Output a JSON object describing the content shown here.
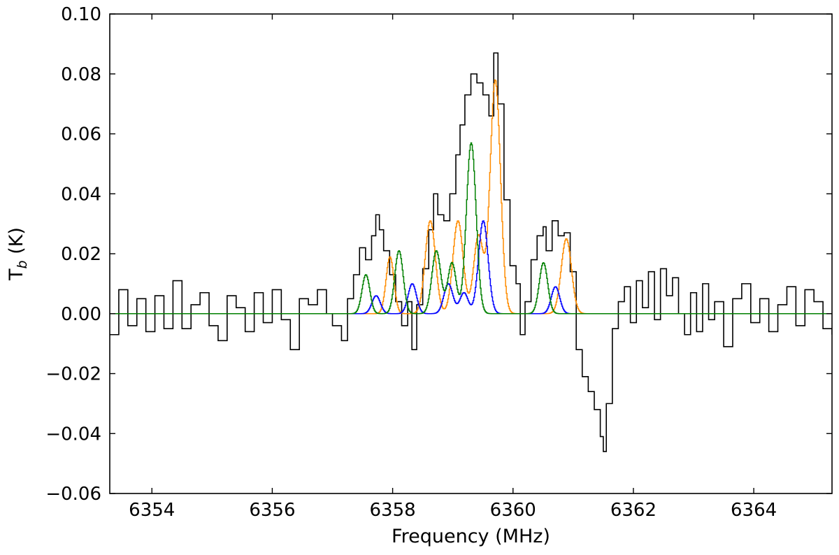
{
  "chart_data": {
    "type": "line",
    "title": "",
    "xlabel": "Frequency (MHz)",
    "ylabel": "T",
    "ylabel_sub": "b",
    "ylabel_unit": " (K)",
    "xlim": [
      6353.3,
      6365.3
    ],
    "ylim": [
      -0.06,
      0.1
    ],
    "xticks": [
      6354,
      6356,
      6358,
      6360,
      6362,
      6364
    ],
    "xtick_labels": [
      "6354",
      "6356",
      "6358",
      "6360",
      "6362",
      "6364"
    ],
    "yticks": [
      -0.06,
      -0.04,
      -0.02,
      0.0,
      0.02,
      0.04,
      0.06,
      0.08,
      0.1
    ],
    "ytick_labels": [
      "−0.06",
      "−0.04",
      "−0.02",
      "0.00",
      "0.02",
      "0.04",
      "0.06",
      "0.08",
      "0.10"
    ],
    "grid": false,
    "legend": "none",
    "series": [
      {
        "color": "#000000",
        "style": "steps",
        "points": [
          [
            6353.3,
            -0.007
          ],
          [
            6353.45,
            0.008
          ],
          [
            6353.6,
            -0.004
          ],
          [
            6353.75,
            0.005
          ],
          [
            6353.9,
            -0.006
          ],
          [
            6354.05,
            0.006
          ],
          [
            6354.2,
            -0.005
          ],
          [
            6354.35,
            0.011
          ],
          [
            6354.5,
            -0.005
          ],
          [
            6354.65,
            0.003
          ],
          [
            6354.8,
            0.007
          ],
          [
            6354.95,
            -0.004
          ],
          [
            6355.1,
            -0.009
          ],
          [
            6355.25,
            0.006
          ],
          [
            6355.4,
            0.002
          ],
          [
            6355.55,
            -0.006
          ],
          [
            6355.7,
            0.007
          ],
          [
            6355.85,
            -0.003
          ],
          [
            6356.0,
            0.008
          ],
          [
            6356.15,
            -0.002
          ],
          [
            6356.3,
            -0.012
          ],
          [
            6356.45,
            0.005
          ],
          [
            6356.6,
            0.003
          ],
          [
            6356.75,
            0.008
          ],
          [
            6356.9,
            0.0
          ],
          [
            6357.0,
            -0.004
          ],
          [
            6357.15,
            -0.009
          ],
          [
            6357.25,
            0.005
          ],
          [
            6357.35,
            0.013
          ],
          [
            6357.45,
            0.022
          ],
          [
            6357.55,
            0.018
          ],
          [
            6357.65,
            0.026
          ],
          [
            6357.72,
            0.033
          ],
          [
            6357.78,
            0.028
          ],
          [
            6357.85,
            0.021
          ],
          [
            6357.95,
            0.013
          ],
          [
            6358.05,
            0.004
          ],
          [
            6358.15,
            -0.004
          ],
          [
            6358.25,
            0.004
          ],
          [
            6358.32,
            -0.012
          ],
          [
            6358.4,
            0.003
          ],
          [
            6358.5,
            0.015
          ],
          [
            6358.6,
            0.028
          ],
          [
            6358.68,
            0.04
          ],
          [
            6358.75,
            0.033
          ],
          [
            6358.85,
            0.031
          ],
          [
            6358.95,
            0.04
          ],
          [
            6359.05,
            0.053
          ],
          [
            6359.12,
            0.063
          ],
          [
            6359.2,
            0.073
          ],
          [
            6359.3,
            0.08
          ],
          [
            6359.4,
            0.077
          ],
          [
            6359.5,
            0.073
          ],
          [
            6359.6,
            0.066
          ],
          [
            6359.68,
            0.087
          ],
          [
            6359.75,
            0.07
          ],
          [
            6359.85,
            0.038
          ],
          [
            6359.95,
            0.016
          ],
          [
            6360.05,
            0.01
          ],
          [
            6360.12,
            -0.007
          ],
          [
            6360.2,
            0.004
          ],
          [
            6360.3,
            0.018
          ],
          [
            6360.4,
            0.026
          ],
          [
            6360.5,
            0.029
          ],
          [
            6360.55,
            0.021
          ],
          [
            6360.65,
            0.031
          ],
          [
            6360.75,
            0.026
          ],
          [
            6360.85,
            0.027
          ],
          [
            6360.95,
            0.014
          ],
          [
            6361.05,
            -0.012
          ],
          [
            6361.15,
            -0.021
          ],
          [
            6361.25,
            -0.026
          ],
          [
            6361.35,
            -0.032
          ],
          [
            6361.45,
            -0.041
          ],
          [
            6361.5,
            -0.046
          ],
          [
            6361.55,
            -0.03
          ],
          [
            6361.65,
            -0.005
          ],
          [
            6361.75,
            0.004
          ],
          [
            6361.85,
            0.009
          ],
          [
            6361.95,
            -0.003
          ],
          [
            6362.05,
            0.011
          ],
          [
            6362.15,
            0.002
          ],
          [
            6362.25,
            0.014
          ],
          [
            6362.35,
            -0.002
          ],
          [
            6362.45,
            0.015
          ],
          [
            6362.55,
            0.006
          ],
          [
            6362.65,
            0.012
          ],
          [
            6362.75,
            0.0
          ],
          [
            6362.85,
            -0.007
          ],
          [
            6362.95,
            0.007
          ],
          [
            6363.05,
            -0.006
          ],
          [
            6363.15,
            0.01
          ],
          [
            6363.25,
            -0.002
          ],
          [
            6363.35,
            0.004
          ],
          [
            6363.5,
            -0.011
          ],
          [
            6363.65,
            0.005
          ],
          [
            6363.8,
            0.01
          ],
          [
            6363.95,
            -0.003
          ],
          [
            6364.1,
            0.005
          ],
          [
            6364.25,
            -0.006
          ],
          [
            6364.4,
            0.003
          ],
          [
            6364.55,
            0.009
          ],
          [
            6364.7,
            -0.004
          ],
          [
            6364.85,
            0.008
          ],
          [
            6365.0,
            0.004
          ],
          [
            6365.15,
            -0.005
          ],
          [
            6365.3,
            -0.007
          ]
        ]
      },
      {
        "color": "#ff8c00",
        "style": "gaussians",
        "baseline_range": [
          6357.2,
          6365.3
        ],
        "components": [
          {
            "center": 6357.95,
            "amp": 0.019,
            "sigma": 0.065
          },
          {
            "center": 6358.62,
            "amp": 0.031,
            "sigma": 0.085
          },
          {
            "center": 6359.08,
            "amp": 0.031,
            "sigma": 0.085
          },
          {
            "center": 6359.42,
            "amp": 0.026,
            "sigma": 0.08
          },
          {
            "center": 6359.7,
            "amp": 0.078,
            "sigma": 0.085
          },
          {
            "center": 6360.88,
            "amp": 0.025,
            "sigma": 0.085
          }
        ]
      },
      {
        "color": "#008000",
        "style": "gaussians",
        "baseline_range": [
          6353.3,
          6365.3
        ],
        "components": [
          {
            "center": 6357.55,
            "amp": 0.013,
            "sigma": 0.065
          },
          {
            "center": 6358.1,
            "amp": 0.021,
            "sigma": 0.07
          },
          {
            "center": 6358.72,
            "amp": 0.021,
            "sigma": 0.075
          },
          {
            "center": 6358.98,
            "amp": 0.017,
            "sigma": 0.07
          },
          {
            "center": 6359.3,
            "amp": 0.057,
            "sigma": 0.08
          },
          {
            "center": 6360.5,
            "amp": 0.017,
            "sigma": 0.07
          }
        ]
      },
      {
        "color": "#0000ff",
        "style": "gaussians",
        "baseline_range": [
          6357.2,
          6365.3
        ],
        "components": [
          {
            "center": 6357.72,
            "amp": 0.006,
            "sigma": 0.07
          },
          {
            "center": 6358.32,
            "amp": 0.01,
            "sigma": 0.07
          },
          {
            "center": 6358.92,
            "amp": 0.01,
            "sigma": 0.075
          },
          {
            "center": 6359.18,
            "amp": 0.007,
            "sigma": 0.07
          },
          {
            "center": 6359.5,
            "amp": 0.031,
            "sigma": 0.08
          },
          {
            "center": 6360.7,
            "amp": 0.009,
            "sigma": 0.07
          }
        ]
      }
    ]
  }
}
